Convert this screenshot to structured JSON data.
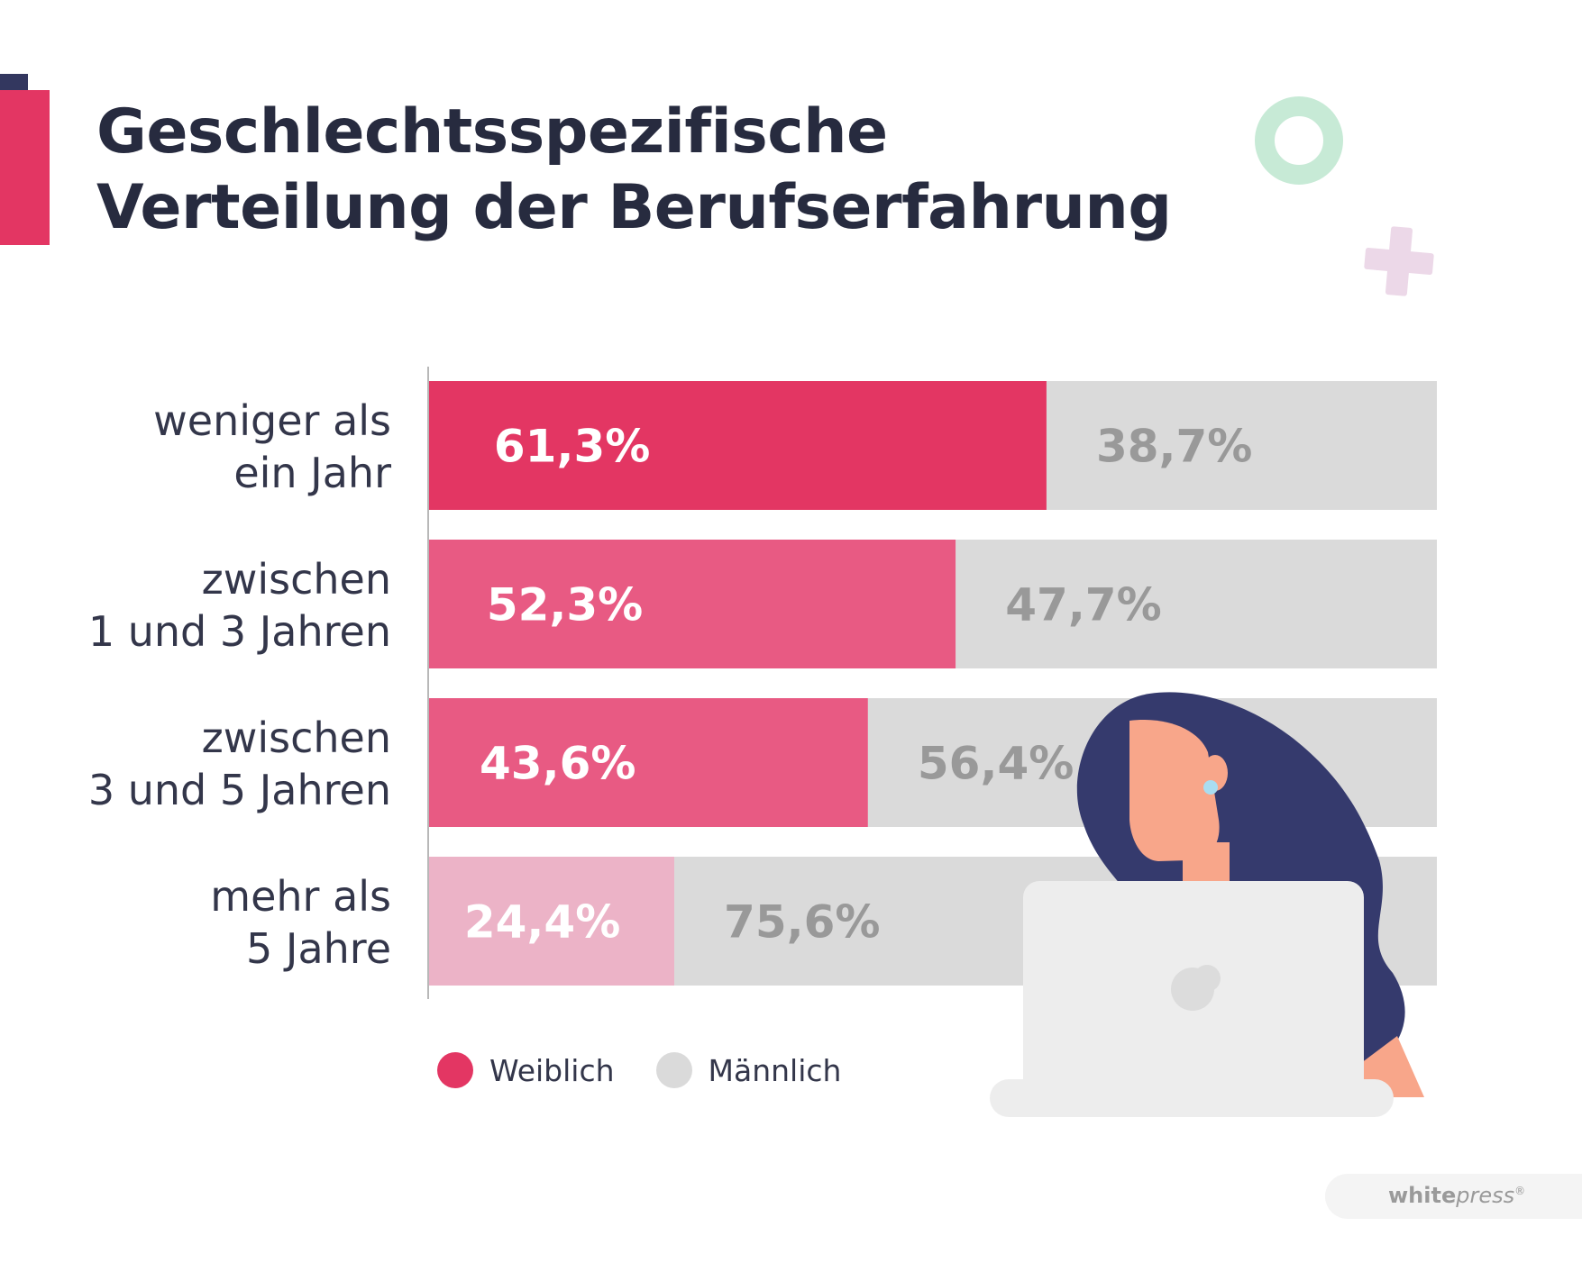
{
  "title": {
    "line1": "Geschlechtsspezifische",
    "line2": "Verteilung der Berufserfahrung"
  },
  "colors": {
    "female_shades": [
      "#e33663",
      "#e85a83",
      "#e85a83",
      "#ecb3c7"
    ],
    "male": "#dadada",
    "text_dark": "#272b3f"
  },
  "chart_data": {
    "type": "bar",
    "orientation": "horizontal",
    "stacked": true,
    "unit": "%",
    "xlim": [
      0,
      100
    ],
    "categories": [
      [
        "weniger als",
        "ein Jahr"
      ],
      [
        "zwischen",
        "1 und 3 Jahren"
      ],
      [
        "zwischen",
        "3 und 5 Jahren"
      ],
      [
        "mehr als",
        "5 Jahre"
      ]
    ],
    "series": [
      {
        "name": "Weiblich",
        "values": [
          61.3,
          52.3,
          43.6,
          24.4
        ],
        "labels": [
          "61,3%",
          "52,3%",
          "43,6%",
          "24,4%"
        ]
      },
      {
        "name": "Männlich",
        "values": [
          38.7,
          47.7,
          56.4,
          75.6
        ],
        "labels": [
          "38,7%",
          "47,7%",
          "56,4%",
          "75,6%"
        ]
      }
    ],
    "legend_position": "bottom"
  },
  "legend": {
    "female_label": "Weiblich",
    "male_label": "Männlich"
  },
  "brand": {
    "bold": "white",
    "italic": "press",
    "mark": "®"
  },
  "icons": [
    "laptop-icon",
    "woman-illustration",
    "ring-decoration-icon",
    "plus-decoration-icon"
  ]
}
